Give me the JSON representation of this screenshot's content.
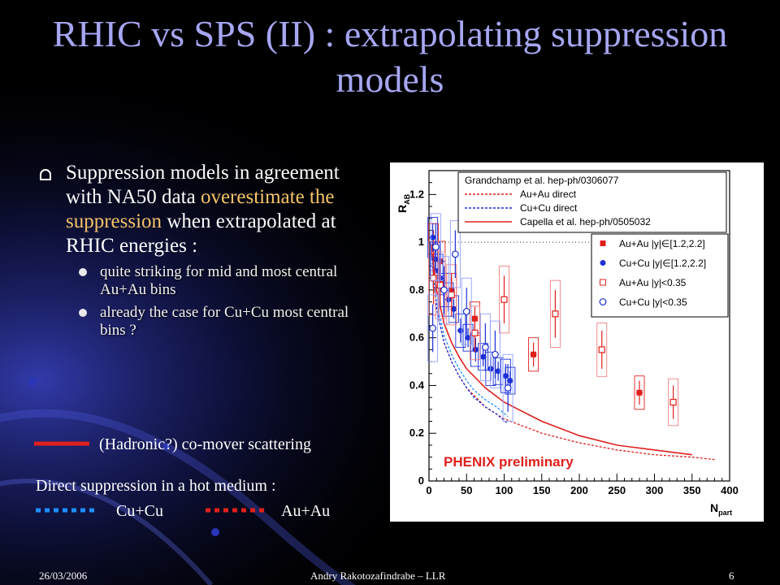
{
  "title": "RHIC vs SPS (II) : extrapolating suppression models",
  "bullet1": {
    "pre": "Suppression models in agreement with NA50 data ",
    "highlight": "overestimate the suppression",
    "post": " when extrapolated at RHIC energies :"
  },
  "sub_bullets": [
    "quite striking for mid and most central Au+Au bins",
    "already the case for Cu+Cu most central bins ?"
  ],
  "comover_label": "(Hadronic?) co-mover scattering",
  "direct_label": "Direct suppression in a hot medium :",
  "direct_cucu": "Cu+Cu",
  "direct_auau": "Au+Au",
  "footer": {
    "date": "26/03/2006",
    "author": "Andry Rakotozafindrabe – LLR",
    "page": "6"
  },
  "colors": {
    "title": "#a6a6f2",
    "highlight": "#f5c36a",
    "red": "#e0201c",
    "blue": "#1c2fd6",
    "cyan": "#1f8fff"
  },
  "chart_data": {
    "type": "scatter",
    "xlabel": "N",
    "xlabel_sub": "part",
    "ylabel": "R",
    "ylabel_sub": "AB",
    "xlim": [
      0,
      400
    ],
    "ylim": [
      0,
      1.3
    ],
    "xticks": [
      "0",
      "50",
      "100",
      "150",
      "200",
      "250",
      "300",
      "350",
      "400"
    ],
    "yticks": [
      "0",
      "0.2",
      "0.4",
      "0.6",
      "0.8",
      "1",
      "1.2"
    ],
    "watermark": "PHENIX preliminary",
    "model_legend": [
      {
        "label": "Grandchamp et al. hep-ph/0306077",
        "style": "none",
        "color": "#000000"
      },
      {
        "label": "Au+Au direct",
        "style": "dotted",
        "color": "#e0201c"
      },
      {
        "label": "Cu+Cu direct",
        "style": "dotted",
        "color": "#1c2fd6"
      },
      {
        "label": "Capella et al. hep-ph/0505032",
        "style": "solid",
        "color": "#e0201c"
      }
    ],
    "data_legend": [
      {
        "label": "Au+Au |y|∈[1.2,2.2]",
        "marker": "filled-square",
        "color": "#e0201c"
      },
      {
        "label": "Cu+Cu |y|∈[1.2,2.2]",
        "marker": "filled-circle",
        "color": "#1c2fd6"
      },
      {
        "label": "Au+Au |y|<0.35",
        "marker": "open-square",
        "color": "#e0201c"
      },
      {
        "label": "Cu+Cu |y|<0.35",
        "marker": "open-circle",
        "color": "#1c2fd6"
      }
    ],
    "series": [
      {
        "name": "Au+Au |y|∈[1.2,2.2]",
        "marker": "filled-square",
        "color": "#e0201c",
        "x": [
          6,
          15,
          30,
          61,
          139,
          280
        ],
        "y": [
          0.98,
          0.92,
          0.8,
          0.68,
          0.53,
          0.37
        ],
        "yerr": [
          0.07,
          0.06,
          0.05,
          0.05,
          0.05,
          0.05
        ]
      },
      {
        "name": "Cu+Cu |y|∈[1.2,2.2]",
        "marker": "filled-circle",
        "color": "#1c2fd6",
        "x": [
          5,
          8,
          12,
          15,
          20,
          26,
          33,
          42,
          52,
          62,
          72,
          82,
          92,
          102,
          108
        ],
        "y": [
          1.02,
          0.93,
          0.88,
          0.85,
          0.8,
          0.76,
          0.72,
          0.63,
          0.6,
          0.55,
          0.52,
          0.47,
          0.46,
          0.44,
          0.42
        ],
        "yerr": [
          0.06,
          0.05,
          0.05,
          0.05,
          0.05,
          0.05,
          0.04,
          0.05,
          0.04,
          0.05,
          0.04,
          0.05,
          0.04,
          0.05,
          0.04
        ]
      },
      {
        "name": "Au+Au |y|<0.35",
        "marker": "open-square",
        "color": "#e0201c",
        "x": [
          6,
          15,
          30,
          61,
          100,
          168,
          230,
          325
        ],
        "y": [
          0.85,
          0.82,
          0.78,
          0.62,
          0.76,
          0.7,
          0.55,
          0.33
        ],
        "yerr": [
          0.11,
          0.1,
          0.09,
          0.08,
          0.1,
          0.1,
          0.08,
          0.07
        ]
      },
      {
        "name": "Cu+Cu |y|<0.35",
        "marker": "open-circle",
        "color": "#1c2fd6",
        "x": [
          5,
          9,
          20,
          35,
          50,
          75,
          88,
          105
        ],
        "y": [
          0.64,
          0.98,
          0.8,
          0.95,
          0.71,
          0.56,
          0.53,
          0.39
        ],
        "yerr": [
          0.1,
          0.1,
          0.1,
          0.1,
          0.1,
          0.1,
          0.1,
          0.1
        ]
      }
    ],
    "curves": [
      {
        "name": "Au+Au direct",
        "style": "dotted",
        "color": "#e0201c",
        "x": [
          2,
          10,
          20,
          30,
          40,
          50,
          75,
          100,
          150,
          200,
          250,
          300,
          350,
          380
        ],
        "y": [
          1.0,
          0.72,
          0.58,
          0.5,
          0.44,
          0.39,
          0.31,
          0.26,
          0.2,
          0.16,
          0.13,
          0.11,
          0.1,
          0.09
        ]
      },
      {
        "name": "Cu+Cu direct",
        "style": "dotted",
        "color": "#1c2fd6",
        "x": [
          2,
          10,
          20,
          30,
          40,
          50,
          60,
          75,
          90,
          105
        ],
        "y": [
          1.0,
          0.72,
          0.58,
          0.5,
          0.44,
          0.39,
          0.35,
          0.31,
          0.28,
          0.24
        ]
      },
      {
        "name": "Cu+Cu",
        "style": "dotted",
        "color": "#1f8fff",
        "x": [
          2,
          10,
          20,
          30,
          40,
          50,
          60,
          75,
          90,
          105
        ],
        "y": [
          1.0,
          0.75,
          0.61,
          0.53,
          0.47,
          0.42,
          0.38,
          0.34,
          0.31,
          0.27
        ]
      },
      {
        "name": "Capella et al. hep-ph/0505032",
        "style": "solid",
        "color": "#e0201c",
        "x": [
          2,
          10,
          20,
          30,
          40,
          50,
          75,
          100,
          150,
          200,
          250,
          300,
          350
        ],
        "y": [
          1.0,
          0.8,
          0.66,
          0.58,
          0.52,
          0.47,
          0.39,
          0.33,
          0.25,
          0.19,
          0.15,
          0.13,
          0.11
        ]
      }
    ],
    "reference_line": {
      "y": 1.0,
      "style": "dotted"
    }
  }
}
